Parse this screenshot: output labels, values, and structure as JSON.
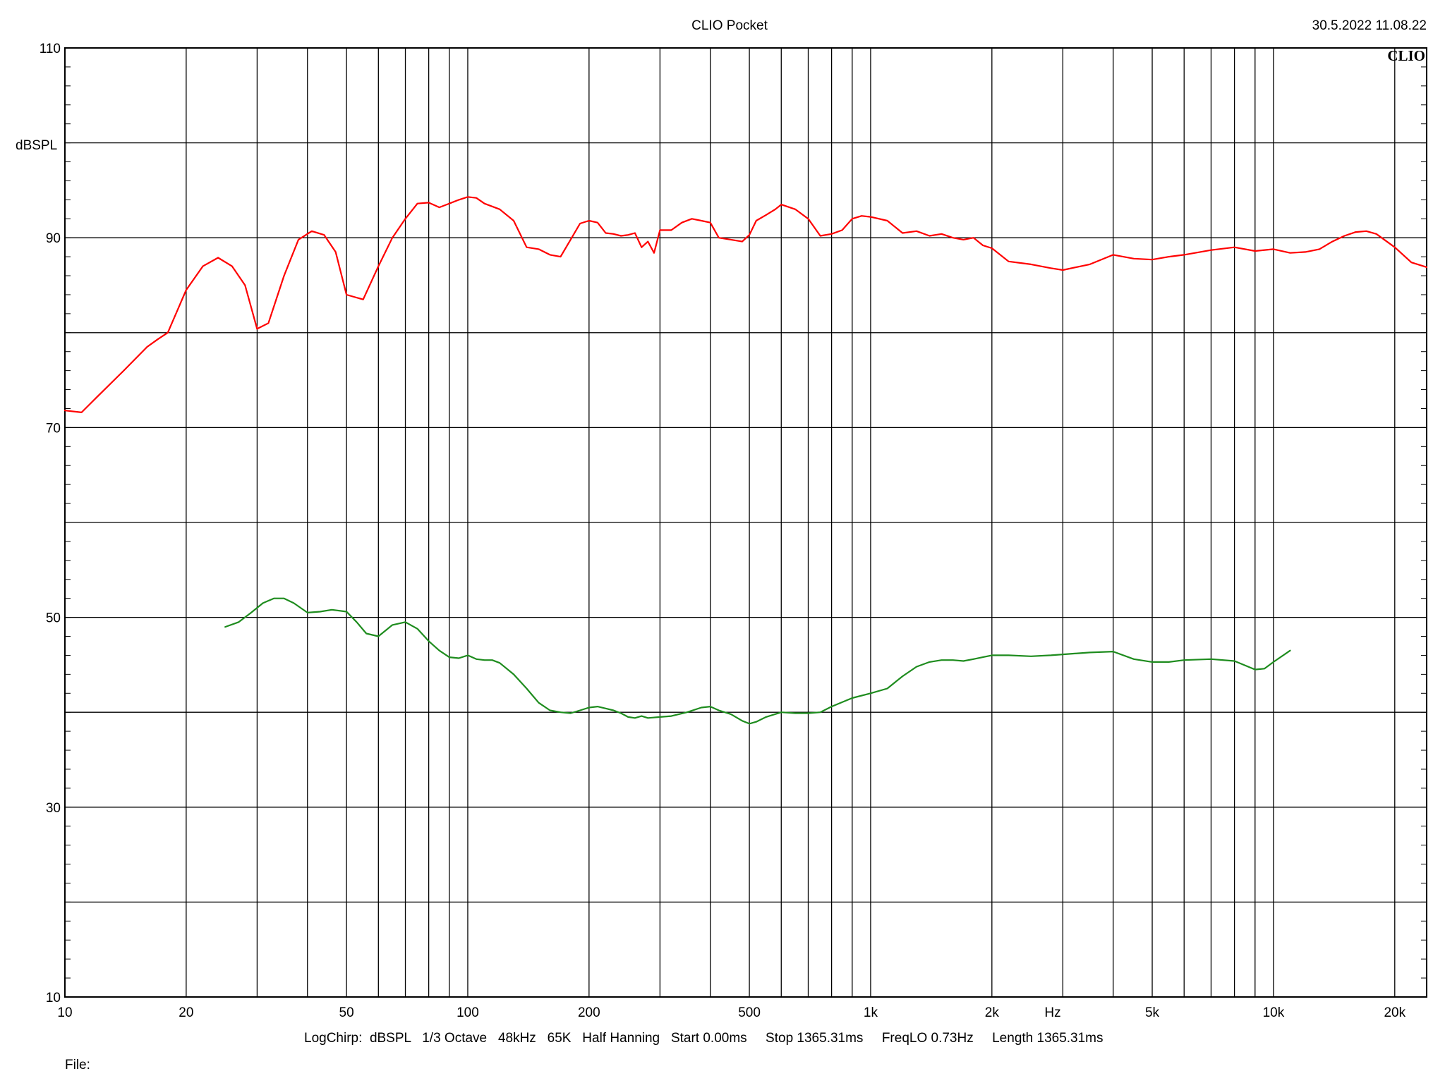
{
  "header": {
    "title": "CLIO Pocket",
    "datetime": "30.5.2022 11.08.22",
    "logo": "CLIO"
  },
  "footer": {
    "settings": "LogChirp:  dBSPL   1/3 Octave   48kHz   65K   Half Hanning   Start 0.00ms     Stop 1365.31ms     FreqLO 0.73Hz     Length 1365.31ms",
    "file_label": "File:"
  },
  "chart_data": {
    "type": "line",
    "title": "CLIO Pocket",
    "ylabel": "dBSPL",
    "xlabel": "Hz",
    "x_scale": "log",
    "xlim": [
      10,
      24000
    ],
    "ylim": [
      10,
      110
    ],
    "grid": true,
    "y_ticks": [
      10,
      30,
      50,
      70,
      90,
      110
    ],
    "x_ticks": [
      {
        "value": 10,
        "label": "10"
      },
      {
        "value": 20,
        "label": "20"
      },
      {
        "value": 50,
        "label": "50"
      },
      {
        "value": 100,
        "label": "100"
      },
      {
        "value": 200,
        "label": "200"
      },
      {
        "value": 500,
        "label": "500"
      },
      {
        "value": 1000,
        "label": "1k"
      },
      {
        "value": 2000,
        "label": "2k"
      },
      {
        "value": 5000,
        "label": "5k"
      },
      {
        "value": 10000,
        "label": "10k"
      },
      {
        "value": 20000,
        "label": "20k"
      }
    ],
    "series": [
      {
        "color": "#ff0000",
        "x": [
          10,
          11,
          12,
          14,
          16,
          17,
          18,
          20,
          22,
          24,
          26,
          28,
          30,
          32,
          35,
          38,
          41,
          44,
          47,
          50,
          55,
          60,
          65,
          70,
          75,
          80,
          85,
          90,
          95,
          100,
          105,
          110,
          120,
          130,
          140,
          150,
          160,
          170,
          180,
          190,
          200,
          210,
          220,
          230,
          240,
          250,
          260,
          270,
          280,
          290,
          300,
          320,
          340,
          360,
          380,
          400,
          420,
          450,
          480,
          500,
          520,
          550,
          580,
          600,
          650,
          700,
          750,
          800,
          850,
          900,
          950,
          1000,
          1100,
          1200,
          1300,
          1400,
          1500,
          1600,
          1700,
          1800,
          1900,
          2000,
          2200,
          2500,
          2800,
          3000,
          3500,
          4000,
          4500,
          5000,
          5500,
          6000,
          7000,
          8000,
          9000,
          10000,
          11000,
          12000,
          13000,
          14000,
          15000,
          16000,
          17000,
          18000,
          20000,
          22000,
          24000
        ],
        "y": [
          71.8,
          71.6,
          73.2,
          76.0,
          78.5,
          79.3,
          80.0,
          84.5,
          87.0,
          87.9,
          87.0,
          85.0,
          80.4,
          81.0,
          86.0,
          89.8,
          90.7,
          90.3,
          88.5,
          84.0,
          83.5,
          87.0,
          90.0,
          92.0,
          93.6,
          93.7,
          93.2,
          93.6,
          94.0,
          94.3,
          94.2,
          93.6,
          93.0,
          91.8,
          89.0,
          88.8,
          88.2,
          88.0,
          89.8,
          91.5,
          91.8,
          91.6,
          90.5,
          90.4,
          90.2,
          90.3,
          90.5,
          89.0,
          89.6,
          88.4,
          90.8,
          90.8,
          91.6,
          92.0,
          91.8,
          91.6,
          90.0,
          89.8,
          89.6,
          90.3,
          91.8,
          92.4,
          93.0,
          93.5,
          93.0,
          92.0,
          90.2,
          90.4,
          90.8,
          92.0,
          92.3,
          92.2,
          91.8,
          90.5,
          90.7,
          90.2,
          90.4,
          90.0,
          89.8,
          90.0,
          89.2,
          88.9,
          87.5,
          87.2,
          86.8,
          86.6,
          87.2,
          88.2,
          87.8,
          87.7,
          88.0,
          88.2,
          88.7,
          89.0,
          88.6,
          88.8,
          88.4,
          88.5,
          88.8,
          89.6,
          90.2,
          90.6,
          90.7,
          90.4,
          89.0,
          87.4,
          86.9
        ]
      },
      {
        "color": "#1e8c1e",
        "x": [
          25,
          27,
          29,
          31,
          33,
          35,
          37,
          40,
          43,
          46,
          50,
          53,
          56,
          60,
          65,
          70,
          75,
          80,
          85,
          90,
          95,
          100,
          105,
          110,
          115,
          120,
          130,
          140,
          150,
          160,
          170,
          180,
          190,
          200,
          210,
          220,
          230,
          240,
          250,
          260,
          270,
          280,
          300,
          320,
          350,
          380,
          400,
          420,
          450,
          480,
          500,
          520,
          550,
          600,
          650,
          700,
          750,
          800,
          900,
          1000,
          1100,
          1200,
          1300,
          1400,
          1500,
          1600,
          1700,
          1800,
          2000,
          2200,
          2500,
          2800,
          3000,
          3500,
          4000,
          4500,
          5000,
          5500,
          6000,
          7000,
          8000,
          9000,
          9500,
          10000,
          11000
        ],
        "y": [
          49.0,
          49.5,
          50.5,
          51.5,
          52.0,
          52.0,
          51.5,
          50.5,
          50.6,
          50.8,
          50.6,
          49.5,
          48.3,
          48.0,
          49.2,
          49.5,
          48.8,
          47.5,
          46.5,
          45.8,
          45.7,
          46.0,
          45.6,
          45.5,
          45.5,
          45.2,
          44.0,
          42.5,
          41.0,
          40.2,
          40.0,
          39.9,
          40.2,
          40.5,
          40.6,
          40.4,
          40.2,
          39.9,
          39.5,
          39.4,
          39.6,
          39.4,
          39.5,
          39.6,
          40.0,
          40.5,
          40.6,
          40.2,
          39.8,
          39.1,
          38.8,
          39.0,
          39.5,
          40.0,
          39.9,
          39.9,
          40.0,
          40.6,
          41.5,
          42.0,
          42.5,
          43.8,
          44.8,
          45.3,
          45.5,
          45.5,
          45.4,
          45.6,
          46.0,
          46.0,
          45.9,
          46.0,
          46.1,
          46.3,
          46.4,
          45.6,
          45.3,
          45.3,
          45.5,
          45.6,
          45.4,
          44.5,
          44.6,
          45.3,
          46.5
        ]
      }
    ]
  }
}
